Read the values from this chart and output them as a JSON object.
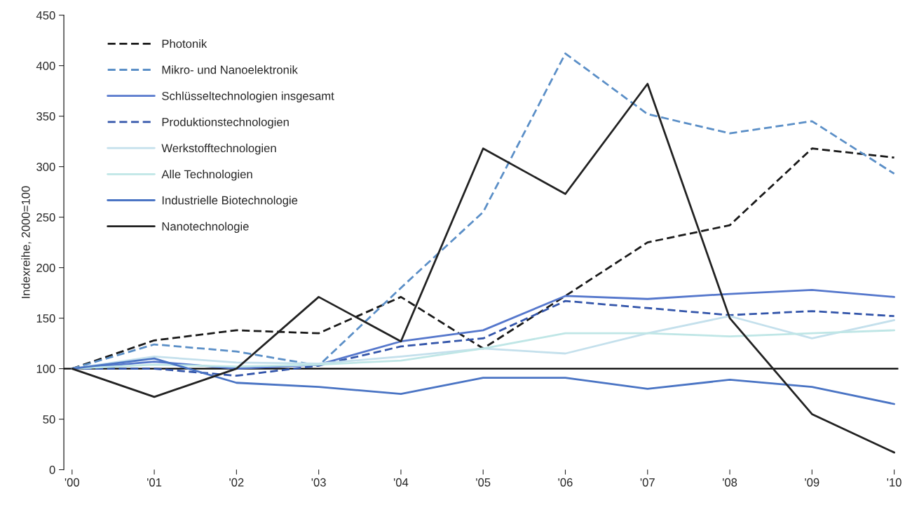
{
  "chart_data": {
    "type": "line",
    "ylabel": "Indexreihe, 2000=100",
    "categories": [
      "'00",
      "'01",
      "'02",
      "'03",
      "'04",
      "'05",
      "'06",
      "'07",
      "'08",
      "'09",
      "'10"
    ],
    "series": [
      {
        "name": "Photonik",
        "color": "#1a1a1a",
        "line_style": "dashed",
        "values": [
          100,
          128,
          138,
          135,
          171,
          120,
          172,
          225,
          242,
          318,
          309
        ]
      },
      {
        "name": "Mikro- und Nanoelektronik",
        "color": "#5b8fc7",
        "line_style": "dashed",
        "values": [
          100,
          124,
          117,
          103,
          180,
          255,
          412,
          352,
          333,
          345,
          293
        ]
      },
      {
        "name": "Schlüsseltechnologien insgesamt",
        "color": "#5577cc",
        "line_style": "solid",
        "values": [
          100,
          107,
          100,
          104,
          127,
          138,
          172,
          169,
          174,
          178,
          171
        ]
      },
      {
        "name": "Produktionstechnologien",
        "color": "#3355aa",
        "line_style": "dashed",
        "values": [
          100,
          100,
          93,
          103,
          122,
          130,
          167,
          160,
          153,
          157,
          152
        ]
      },
      {
        "name": "Werkstofftechnologien",
        "color": "#c4e0ec",
        "line_style": "solid",
        "values": [
          100,
          112,
          106,
          105,
          112,
          120,
          115,
          135,
          152,
          130,
          148
        ]
      },
      {
        "name": "Alle Technologien",
        "color": "#bfe6e6",
        "line_style": "solid",
        "values": [
          100,
          104,
          102,
          104,
          108,
          120,
          135,
          135,
          132,
          135,
          138
        ]
      },
      {
        "name": "Industrielle Biotechnologie",
        "color": "#4a74c4",
        "line_style": "solid",
        "values": [
          100,
          110,
          86,
          82,
          75,
          91,
          91,
          80,
          89,
          82,
          65
        ]
      },
      {
        "name": "Nanotechnologie",
        "color": "#222222",
        "line_style": "solid",
        "values": [
          100,
          72,
          100,
          171,
          127,
          318,
          273,
          382,
          150,
          55,
          17
        ]
      }
    ],
    "ylim": [
      0,
      450
    ],
    "yticks": [
      0,
      50,
      100,
      150,
      200,
      250,
      300,
      350,
      400,
      450
    ],
    "ref_lines": [
      {
        "axis": "y",
        "value": 100,
        "color": "#000000"
      }
    ],
    "grid": false,
    "legend": "top left",
    "marker": "none"
  }
}
